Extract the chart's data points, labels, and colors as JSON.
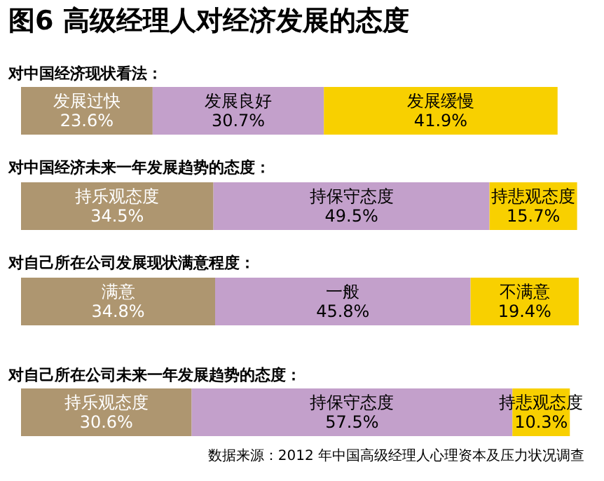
{
  "chart_data": [
    {
      "type": "bar",
      "orientation": "horizontal",
      "stacked": true,
      "title": "图6 高级经理人对经济发展的态度",
      "subtitle": "对中国经济现状看法：",
      "categories": [
        null
      ],
      "tick_labels": false,
      "grid": false,
      "legend": false,
      "series": [
        {
          "name": "发展过快",
          "color": "#ae9670",
          "values": [
            23.6
          ],
          "value_labels": [
            "23.6%"
          ]
        },
        {
          "name": "发展良好",
          "color": "#c3a0cb",
          "values": [
            30.7
          ],
          "value_labels": [
            "30.7%"
          ]
        },
        {
          "name": "发展缓慢",
          "color": "#f8d000",
          "values": [
            41.9
          ],
          "value_labels": [
            "41.9%"
          ]
        }
      ]
    },
    {
      "type": "bar",
      "orientation": "horizontal",
      "stacked": true,
      "title": "对中国经济未来一年发展趋势的态度：",
      "categories": [
        null
      ],
      "tick_labels": false,
      "grid": false,
      "legend": false,
      "series": [
        {
          "name": "持乐观态度",
          "color": "#ae9670",
          "values": [
            34.5
          ],
          "value_labels": [
            "34.5%"
          ]
        },
        {
          "name": "持保守态度",
          "color": "#c3a0cb",
          "values": [
            49.5
          ],
          "value_labels": [
            "49.5%"
          ]
        },
        {
          "name": "持悲观态度",
          "color": "#f8d000",
          "values": [
            15.7
          ],
          "value_labels": [
            "15.7%"
          ]
        }
      ]
    },
    {
      "type": "bar",
      "orientation": "horizontal",
      "stacked": true,
      "title": "对自己所在公司发展现状满意程度：",
      "categories": [
        null
      ],
      "tick_labels": false,
      "grid": false,
      "legend": false,
      "series": [
        {
          "name": "满意",
          "color": "#ae9670",
          "values": [
            34.8
          ],
          "value_labels": [
            "34.8%"
          ]
        },
        {
          "name": "一般",
          "color": "#c3a0cb",
          "values": [
            45.8
          ],
          "value_labels": [
            "45.8%"
          ]
        },
        {
          "name": "不满意",
          "color": "#f8d000",
          "values": [
            19.4
          ],
          "value_labels": [
            "19.4%"
          ]
        }
      ]
    },
    {
      "type": "bar",
      "orientation": "horizontal",
      "stacked": true,
      "title": "对自己所在公司未来一年发展趋势的态度：",
      "categories": [
        null
      ],
      "tick_labels": false,
      "grid": false,
      "legend": false,
      "annotations": [
        "数据来源：2012 年中国高级经理人心理资本及压力状况调查"
      ],
      "series": [
        {
          "name": "持乐观态度",
          "color": "#ae9670",
          "values": [
            30.6
          ],
          "value_labels": [
            "30.6%"
          ]
        },
        {
          "name": "持保守态度",
          "color": "#c3a0cb",
          "values": [
            57.5
          ],
          "value_labels": [
            "57.5%"
          ]
        },
        {
          "name": "持悲观态度",
          "color": "#f8d000",
          "values": [
            10.3
          ],
          "value_labels": [
            "10.3%"
          ]
        }
      ]
    }
  ]
}
